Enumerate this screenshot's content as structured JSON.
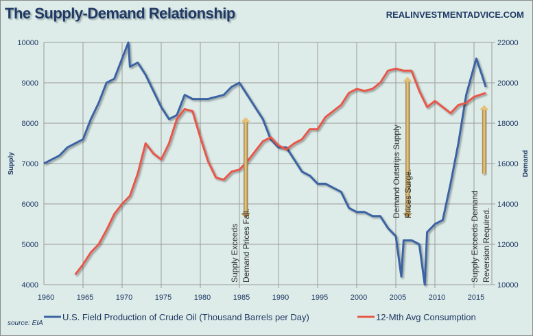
{
  "header": {
    "title": "The Supply-Demand Relationship",
    "site": "REALINVESTMENTADVICE.COM"
  },
  "source": "source:  EIA",
  "chart_data": {
    "type": "line",
    "title": "The Supply-Demand Relationship",
    "xlim": [
      1960,
      2016.5
    ],
    "x_ticks": [
      "1960",
      "1965",
      "1970",
      "1975",
      "1980",
      "1985",
      "1990",
      "1995",
      "2000",
      "2005",
      "2010",
      "2015"
    ],
    "y_left": {
      "label": "Supply",
      "range": [
        4000,
        10000
      ],
      "ticks": [
        "4000",
        "5000",
        "6000",
        "7000",
        "8000",
        "9000",
        "10000"
      ]
    },
    "y_right": {
      "label": "Demand",
      "range": [
        10000,
        22000
      ],
      "ticks": [
        "10000",
        "12000",
        "14000",
        "16000",
        "18000",
        "20000",
        "22000"
      ]
    },
    "grid": true,
    "legend": "bottom",
    "series": [
      {
        "name": "U.S. Field Production of Crude Oil (Thousand Barrels per Day)",
        "axis": "left",
        "color": "#3a64a4",
        "x": [
          1960,
          1961,
          1962,
          1963,
          1964,
          1965,
          1966,
          1967,
          1968,
          1969,
          1970,
          1970.8,
          1971,
          1972,
          1973,
          1974,
          1975,
          1976,
          1977,
          1978,
          1979,
          1980,
          1981,
          1982,
          1983,
          1984,
          1985,
          1986,
          1987,
          1988,
          1989,
          1990,
          1991,
          1992,
          1993,
          1994,
          1995,
          1996,
          1997,
          1998,
          1999,
          2000,
          2001,
          2002,
          2003,
          2004,
          2005,
          2005.7,
          2006,
          2007,
          2008,
          2008.7,
          2009,
          2010,
          2011,
          2012,
          2013,
          2014,
          2015,
          2015.3,
          2016,
          2016.5
        ],
        "y": [
          7000,
          7100,
          7200,
          7400,
          7500,
          7600,
          8100,
          8500,
          9000,
          9100,
          9600,
          10000,
          9400,
          9500,
          9200,
          8800,
          8400,
          8100,
          8200,
          8700,
          8600,
          8600,
          8600,
          8650,
          8700,
          8900,
          9000,
          8700,
          8400,
          8100,
          7600,
          7400,
          7400,
          7100,
          6800,
          6700,
          6500,
          6500,
          6400,
          6300,
          5900,
          5800,
          5800,
          5700,
          5700,
          5400,
          5200,
          4200,
          5100,
          5100,
          5000,
          4000,
          5300,
          5500,
          5600,
          6500,
          7500,
          8700,
          9400,
          9600,
          9200,
          8900
        ]
      },
      {
        "name": "12-Mth Avg Consumption",
        "axis": "right",
        "color": "#e8574a",
        "x": [
          1964,
          1965,
          1966,
          1967,
          1968,
          1969,
          1970,
          1971,
          1972,
          1973,
          1974,
          1975,
          1976,
          1977,
          1978,
          1979,
          1980,
          1981,
          1982,
          1983,
          1984,
          1985,
          1986,
          1987,
          1988,
          1989,
          1990,
          1991,
          1992,
          1993,
          1994,
          1995,
          1996,
          1997,
          1998,
          1999,
          2000,
          2001,
          2002,
          2003,
          2004,
          2005,
          2006,
          2007,
          2008,
          2009,
          2010,
          2011,
          2012,
          2013,
          2014,
          2015,
          2016.5
        ],
        "y": [
          10500,
          11000,
          11600,
          12000,
          12700,
          13500,
          14000,
          14400,
          15500,
          17000,
          16500,
          16200,
          17000,
          18200,
          18700,
          18600,
          17300,
          16100,
          15300,
          15200,
          15600,
          15700,
          16100,
          16600,
          17100,
          17300,
          16900,
          16700,
          17000,
          17200,
          17700,
          17700,
          18300,
          18600,
          18900,
          19500,
          19700,
          19600,
          19700,
          20000,
          20600,
          20700,
          20600,
          20600,
          19600,
          18800,
          19100,
          18800,
          18500,
          18900,
          19000,
          19300,
          19500
        ]
      }
    ],
    "annotations": [
      {
        "lines": [
          "Supply Exceeds",
          "Demand Prices Fall."
        ],
        "x": 1985.8,
        "arrow": "both",
        "y_from": 8150,
        "y_to": 5650
      },
      {
        "lines": [
          "Demand Outstrips Supply",
          "Prices Surge."
        ],
        "x": 2006.5,
        "arrow": "both",
        "y_from": 9150,
        "y_to": 5650
      },
      {
        "lines": [
          "Supply Exceeds Demand",
          "Reversion Required."
        ],
        "x": 2016.3,
        "arrow": "up",
        "y_from": 6750,
        "y_to": 8450
      }
    ]
  }
}
